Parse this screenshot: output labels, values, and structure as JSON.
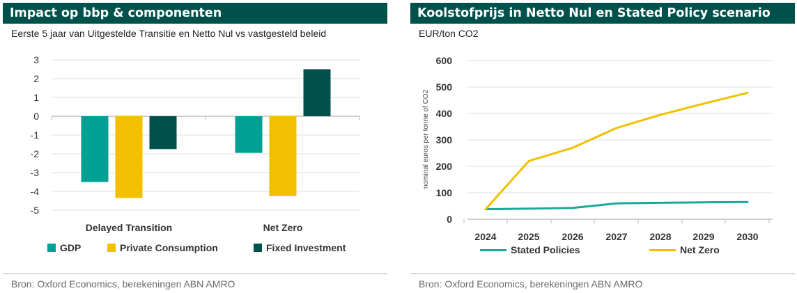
{
  "panels": {
    "left": {
      "title": "Impact op bbp & componenten",
      "subtitle": "Eerste 5 jaar van Uitgestelde Transitie en Netto Nul vs vastgesteld beleid",
      "source": "Bron: Oxford Economics, berekeningen ABN AMRO"
    },
    "right": {
      "title": "Koolstofprijs in Netto Nul en Stated Policy scenario",
      "subtitle": "EUR/ton CO2",
      "source": "Bron: Oxford Economics, berekeningen ABN AMRO"
    }
  },
  "chart_data": [
    {
      "type": "bar",
      "title": "Impact op bbp & componenten",
      "subtitle": "Eerste 5 jaar van Uitgestelde Transitie en Netto Nul vs vastgesteld beleid",
      "categories": [
        "Delayed Transition",
        "Net Zero"
      ],
      "series": [
        {
          "name": "GDP",
          "color": "#00a095",
          "values": [
            -3.5,
            -1.95
          ]
        },
        {
          "name": "Private Consumption",
          "color": "#f2c000",
          "values": [
            -4.35,
            -4.25
          ]
        },
        {
          "name": "Fixed Investment",
          "color": "#00504b",
          "values": [
            -1.75,
            2.5
          ]
        }
      ],
      "yticks": [
        "3",
        "2",
        "1",
        "0",
        "-1",
        "-2",
        "-3",
        "-4",
        "-5"
      ],
      "ylim": [
        -5,
        3
      ],
      "grid": true,
      "legend_position": "bottom"
    },
    {
      "type": "line",
      "title": "Koolstofprijs in Netto Nul en Stated Policy scenario",
      "subtitle": "EUR/ton CO2",
      "ylabel": "nominal euros per tonne of CO2",
      "x": [
        "2024",
        "2025",
        "2026",
        "2027",
        "2028",
        "2029",
        "2030"
      ],
      "series": [
        {
          "name": "Stated Policies",
          "color": "#1aa89a",
          "values": [
            38,
            40,
            43,
            60,
            62,
            64,
            65
          ]
        },
        {
          "name": "Net Zero",
          "color": "#f2c000",
          "values": [
            38,
            220,
            270,
            345,
            395,
            437,
            478
          ]
        }
      ],
      "yticks": [
        "0",
        "100",
        "200",
        "300",
        "400",
        "500",
        "600"
      ],
      "ylim": [
        0,
        600
      ],
      "grid": true,
      "legend_position": "bottom"
    }
  ]
}
